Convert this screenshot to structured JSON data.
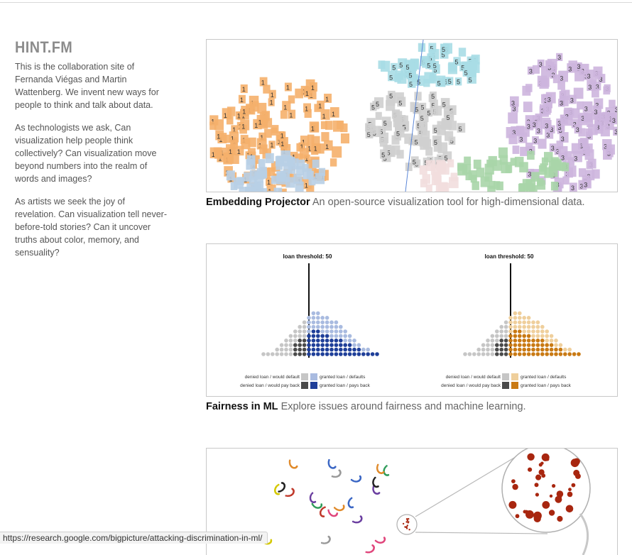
{
  "site": {
    "logo": "HINT.FM",
    "paragraphs": [
      "This is the collaboration site of Fernanda Viégas and Martin Wattenberg. We invent new ways for people to think and talk about data.",
      "As technologists we ask, Can visualization help people think collectively? Can visualization move beyond numbers into the realm of words and images?",
      "As artists we seek the joy of revelation. Can visualization tell never-before-told stories? Can it uncover truths about color, memory, and sensuality?"
    ]
  },
  "projects": [
    {
      "title": "Embedding Projector",
      "description": "An open-source visualization tool for high-dimensional data."
    },
    {
      "title": "Fairness in ML",
      "description": "Explore issues around fairness and machine learning.",
      "panels": [
        {
          "threshold_label": "loan threshold: 50",
          "accent": "#1f3f99",
          "accent_light": "#a9bbe0",
          "legend": {
            "denied_default": "denied loan / would default",
            "denied_payback": "denied loan / would pay back",
            "granted_default": "granted loan / defaults",
            "granted_payback": "granted loan / pays back"
          }
        },
        {
          "threshold_label": "loan threshold: 50",
          "accent": "#c97a14",
          "accent_light": "#efcf9c",
          "legend": {
            "denied_default": "denied loan / would default",
            "denied_payback": "denied loan / would pay back",
            "granted_default": "granted loan / defaults",
            "granted_payback": "granted loan / pays back"
          }
        }
      ]
    },
    {
      "title": "",
      "description": ""
    }
  ],
  "status_url": "https://research.google.com/bigpicture/attacking-discrimination-in-ml/"
}
